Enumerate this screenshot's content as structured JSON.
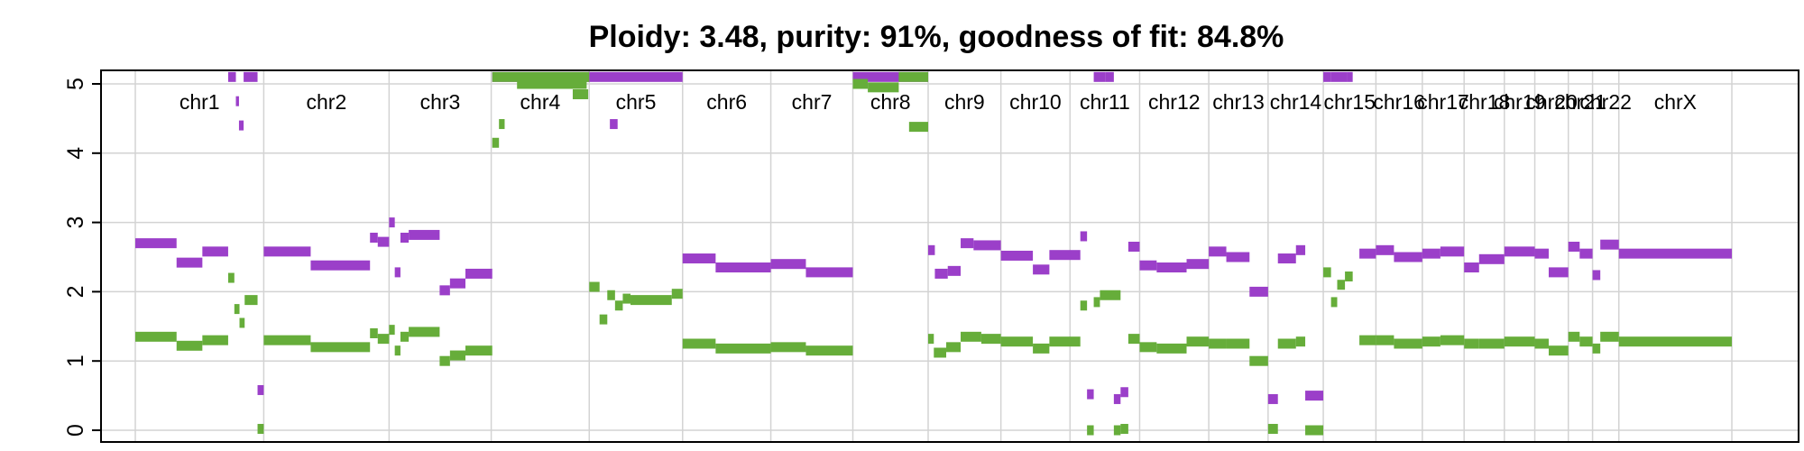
{
  "chart_data": {
    "type": "scatter",
    "title": "Ploidy: 3.48, purity: 91%, goodness of fit: 84.8%",
    "xlabel": "",
    "ylabel": "",
    "ylim": [
      0,
      5
    ],
    "yticks": [
      "0",
      "1",
      "2",
      "3",
      "4",
      "5"
    ],
    "grid": true,
    "colors": {
      "total": "#9b3fc9",
      "minor": "#66ad3a",
      "grid": "#d3d3d3"
    },
    "genome_length": 3095,
    "chromosomes": [
      {
        "name": "chr1",
        "start": 0,
        "end": 249
      },
      {
        "name": "chr2",
        "start": 249,
        "end": 492
      },
      {
        "name": "chr3",
        "start": 492,
        "end": 690
      },
      {
        "name": "chr4",
        "start": 690,
        "end": 880
      },
      {
        "name": "chr5",
        "start": 880,
        "end": 1061
      },
      {
        "name": "chr6",
        "start": 1061,
        "end": 1232
      },
      {
        "name": "chr7",
        "start": 1232,
        "end": 1391
      },
      {
        "name": "chr8",
        "start": 1391,
        "end": 1537
      },
      {
        "name": "chr9",
        "start": 1537,
        "end": 1678
      },
      {
        "name": "chr10",
        "start": 1678,
        "end": 1812
      },
      {
        "name": "chr11",
        "start": 1812,
        "end": 1947
      },
      {
        "name": "chr12",
        "start": 1947,
        "end": 2081
      },
      {
        "name": "chr13",
        "start": 2081,
        "end": 2196
      },
      {
        "name": "chr14",
        "start": 2196,
        "end": 2303
      },
      {
        "name": "chr15",
        "start": 2303,
        "end": 2405
      },
      {
        "name": "chr16",
        "start": 2405,
        "end": 2495
      },
      {
        "name": "chr17",
        "start": 2495,
        "end": 2576
      },
      {
        "name": "chr18",
        "start": 2576,
        "end": 2654
      },
      {
        "name": "chr19",
        "start": 2654,
        "end": 2713
      },
      {
        "name": "chr20",
        "start": 2713,
        "end": 2778
      },
      {
        "name": "chr21",
        "start": 2778,
        "end": 2825
      },
      {
        "name": "chr22",
        "start": 2825,
        "end": 2876
      },
      {
        "name": "chrX",
        "start": 2876,
        "end": 3095
      }
    ],
    "series": [
      {
        "key": "total",
        "segments": [
          [
            0,
            80,
            2.7
          ],
          [
            80,
            130,
            2.42
          ],
          [
            130,
            180,
            2.58
          ],
          [
            180,
            195,
            5.1
          ],
          [
            195,
            201,
            4.75
          ],
          [
            201,
            210,
            4.4
          ],
          [
            210,
            237,
            5.1
          ],
          [
            237,
            249,
            0.58
          ],
          [
            249,
            340,
            2.58
          ],
          [
            340,
            455,
            2.38
          ],
          [
            455,
            470,
            2.78
          ],
          [
            470,
            492,
            2.72
          ],
          [
            492,
            503,
            3.0
          ],
          [
            503,
            514,
            2.28
          ],
          [
            514,
            530,
            2.78
          ],
          [
            530,
            590,
            2.82
          ],
          [
            590,
            610,
            2.02
          ],
          [
            610,
            640,
            2.12
          ],
          [
            640,
            692,
            2.26
          ],
          [
            692,
            880,
            5.1
          ],
          [
            880,
            1061,
            5.1
          ],
          [
            920,
            935,
            4.42
          ],
          [
            1061,
            1125,
            2.48
          ],
          [
            1125,
            1232,
            2.35
          ],
          [
            1232,
            1300,
            2.4
          ],
          [
            1300,
            1391,
            2.28
          ],
          [
            1391,
            1537,
            5.1
          ],
          [
            1537,
            1550,
            2.6
          ],
          [
            1550,
            1575,
            2.26
          ],
          [
            1575,
            1600,
            2.3
          ],
          [
            1600,
            1625,
            2.7
          ],
          [
            1625,
            1678,
            2.67
          ],
          [
            1678,
            1740,
            2.52
          ],
          [
            1740,
            1772,
            2.32
          ],
          [
            1772,
            1832,
            2.53
          ],
          [
            1832,
            1845,
            2.8
          ],
          [
            1845,
            1858,
            0.52
          ],
          [
            1858,
            1880,
            5.1
          ],
          [
            1880,
            1897,
            5.1
          ],
          [
            1897,
            1910,
            0.45
          ],
          [
            1910,
            1925,
            0.55
          ],
          [
            1925,
            1947,
            2.65
          ],
          [
            1947,
            1980,
            2.38
          ],
          [
            1980,
            2038,
            2.35
          ],
          [
            2038,
            2081,
            2.4
          ],
          [
            2081,
            2115,
            2.58
          ],
          [
            2115,
            2160,
            2.5
          ],
          [
            2160,
            2196,
            2.0
          ],
          [
            2196,
            2215,
            0.45
          ],
          [
            2215,
            2250,
            2.48
          ],
          [
            2250,
            2268,
            2.6
          ],
          [
            2268,
            2303,
            0.5
          ],
          [
            2303,
            2318,
            5.1
          ],
          [
            2318,
            2350,
            5.1
          ],
          [
            2350,
            2360,
            5.1
          ],
          [
            2373,
            2405,
            2.55
          ],
          [
            2405,
            2440,
            2.6
          ],
          [
            2440,
            2495,
            2.5
          ],
          [
            2495,
            2530,
            2.55
          ],
          [
            2530,
            2576,
            2.58
          ],
          [
            2576,
            2605,
            2.35
          ],
          [
            2605,
            2654,
            2.47
          ],
          [
            2654,
            2713,
            2.58
          ],
          [
            2713,
            2740,
            2.55
          ],
          [
            2740,
            2778,
            2.28
          ],
          [
            2778,
            2800,
            2.65
          ],
          [
            2800,
            2825,
            2.55
          ],
          [
            2825,
            2840,
            2.24
          ],
          [
            2840,
            2876,
            2.68
          ],
          [
            2876,
            3095,
            2.55
          ]
        ]
      },
      {
        "key": "minor",
        "segments": [
          [
            0,
            80,
            1.35
          ],
          [
            80,
            130,
            1.22
          ],
          [
            130,
            180,
            1.3
          ],
          [
            180,
            192,
            2.2
          ],
          [
            192,
            202,
            1.75
          ],
          [
            202,
            212,
            1.55
          ],
          [
            212,
            237,
            1.88
          ],
          [
            237,
            249,
            0.02
          ],
          [
            249,
            340,
            1.3
          ],
          [
            340,
            455,
            1.2
          ],
          [
            455,
            470,
            1.4
          ],
          [
            470,
            492,
            1.32
          ],
          [
            492,
            503,
            1.45
          ],
          [
            503,
            514,
            1.15
          ],
          [
            514,
            530,
            1.35
          ],
          [
            530,
            590,
            1.42
          ],
          [
            590,
            610,
            1.0
          ],
          [
            610,
            640,
            1.08
          ],
          [
            640,
            692,
            1.15
          ],
          [
            692,
            880,
            5.1
          ],
          [
            692,
            705,
            4.15
          ],
          [
            705,
            716,
            4.42
          ],
          [
            740,
            875,
            5.0
          ],
          [
            848,
            878,
            4.85
          ],
          [
            880,
            900,
            2.07
          ],
          [
            900,
            915,
            1.6
          ],
          [
            915,
            930,
            1.95
          ],
          [
            930,
            945,
            1.8
          ],
          [
            945,
            960,
            1.9
          ],
          [
            960,
            1040,
            1.88
          ],
          [
            1040,
            1061,
            1.97
          ],
          [
            1061,
            1125,
            1.25
          ],
          [
            1125,
            1232,
            1.18
          ],
          [
            1232,
            1300,
            1.2
          ],
          [
            1300,
            1391,
            1.15
          ],
          [
            1391,
            1420,
            5.0
          ],
          [
            1420,
            1480,
            4.95
          ],
          [
            1480,
            1537,
            5.1
          ],
          [
            1500,
            1537,
            4.38
          ],
          [
            1537,
            1548,
            1.32
          ],
          [
            1548,
            1572,
            1.12
          ],
          [
            1572,
            1600,
            1.2
          ],
          [
            1600,
            1640,
            1.35
          ],
          [
            1640,
            1678,
            1.32
          ],
          [
            1678,
            1740,
            1.28
          ],
          [
            1740,
            1772,
            1.18
          ],
          [
            1772,
            1832,
            1.28
          ],
          [
            1832,
            1845,
            1.8
          ],
          [
            1845,
            1858,
            0.0
          ],
          [
            1858,
            1870,
            1.85
          ],
          [
            1870,
            1910,
            1.95
          ],
          [
            1897,
            1910,
            0.0
          ],
          [
            1910,
            1925,
            0.02
          ],
          [
            1925,
            1947,
            1.32
          ],
          [
            1947,
            1980,
            1.2
          ],
          [
            1980,
            2038,
            1.18
          ],
          [
            2038,
            2081,
            1.28
          ],
          [
            2081,
            2115,
            1.25
          ],
          [
            2115,
            2160,
            1.25
          ],
          [
            2160,
            2196,
            1.0
          ],
          [
            2196,
            2215,
            0.02
          ],
          [
            2215,
            2250,
            1.25
          ],
          [
            2250,
            2268,
            1.28
          ],
          [
            2268,
            2303,
            0.0
          ],
          [
            2303,
            2318,
            2.28
          ],
          [
            2318,
            2330,
            1.85
          ],
          [
            2330,
            2345,
            2.1
          ],
          [
            2345,
            2360,
            2.22
          ],
          [
            2373,
            2405,
            1.3
          ],
          [
            2405,
            2440,
            1.3
          ],
          [
            2440,
            2495,
            1.25
          ],
          [
            2495,
            2530,
            1.28
          ],
          [
            2530,
            2576,
            1.3
          ],
          [
            2576,
            2605,
            1.25
          ],
          [
            2605,
            2654,
            1.25
          ],
          [
            2654,
            2713,
            1.28
          ],
          [
            2713,
            2740,
            1.25
          ],
          [
            2740,
            2778,
            1.15
          ],
          [
            2778,
            2800,
            1.35
          ],
          [
            2800,
            2825,
            1.28
          ],
          [
            2825,
            2840,
            1.18
          ],
          [
            2840,
            2876,
            1.35
          ],
          [
            2876,
            3095,
            1.28
          ]
        ]
      }
    ]
  }
}
